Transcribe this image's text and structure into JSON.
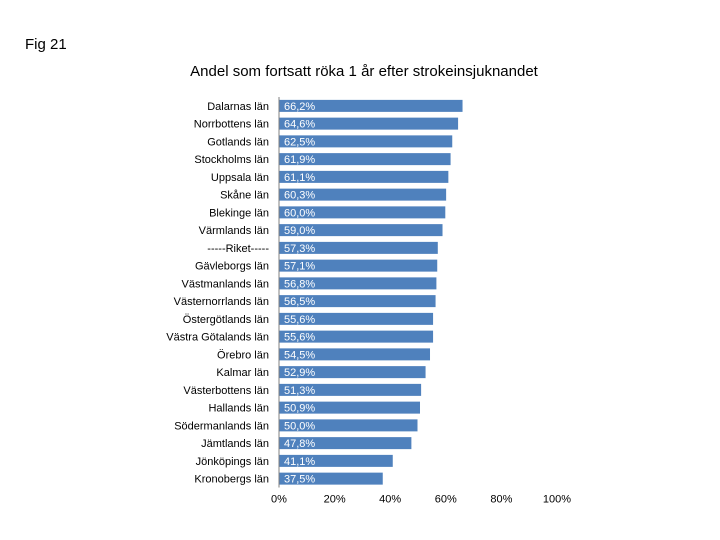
{
  "figure_label": "Fig 21",
  "chart_data": {
    "type": "bar",
    "orientation": "horizontal",
    "title": "Andel som fortsatt röka 1 år efter strokeinsjuknandet",
    "categories": [
      "Dalarnas län",
      "Norrbottens län",
      "Gotlands län",
      "Stockholms län",
      "Uppsala län",
      "Skåne län",
      "Blekinge län",
      "Värmlands län",
      "-----Riket-----",
      "Gävleborgs län",
      "Västmanlands län",
      "Västernorrlands län",
      "Östergötlands län",
      "Västra Götalands län",
      "Örebro län",
      "Kalmar län",
      "Västerbottens län",
      "Hallands län",
      "Södermanlands län",
      "Jämtlands län",
      "Jönköpings län",
      "Kronobergs län"
    ],
    "values": [
      66.2,
      64.6,
      62.5,
      61.9,
      61.1,
      60.3,
      60.0,
      59.0,
      57.3,
      57.1,
      56.8,
      56.5,
      55.6,
      55.6,
      54.5,
      52.9,
      51.3,
      50.9,
      50.0,
      47.8,
      41.1,
      37.5
    ],
    "value_labels": [
      "66,2%",
      "64,6%",
      "62,5%",
      "61,9%",
      "61,1%",
      "60,3%",
      "60,0%",
      "59,0%",
      "57,3%",
      "57,1%",
      "56,8%",
      "56,5%",
      "55,6%",
      "55,6%",
      "54,5%",
      "52,9%",
      "51,3%",
      "50,9%",
      "50,0%",
      "47,8%",
      "41,1%",
      "37,5%"
    ],
    "xlim": [
      0,
      100
    ],
    "x_ticks": [
      0,
      20,
      40,
      60,
      80,
      100
    ],
    "x_tick_labels": [
      "0%",
      "20%",
      "40%",
      "60%",
      "80%",
      "100%"
    ],
    "grid": false,
    "legend": "none",
    "bar_color": "#4f81bd",
    "bar_edge_color": "#ffffff"
  }
}
